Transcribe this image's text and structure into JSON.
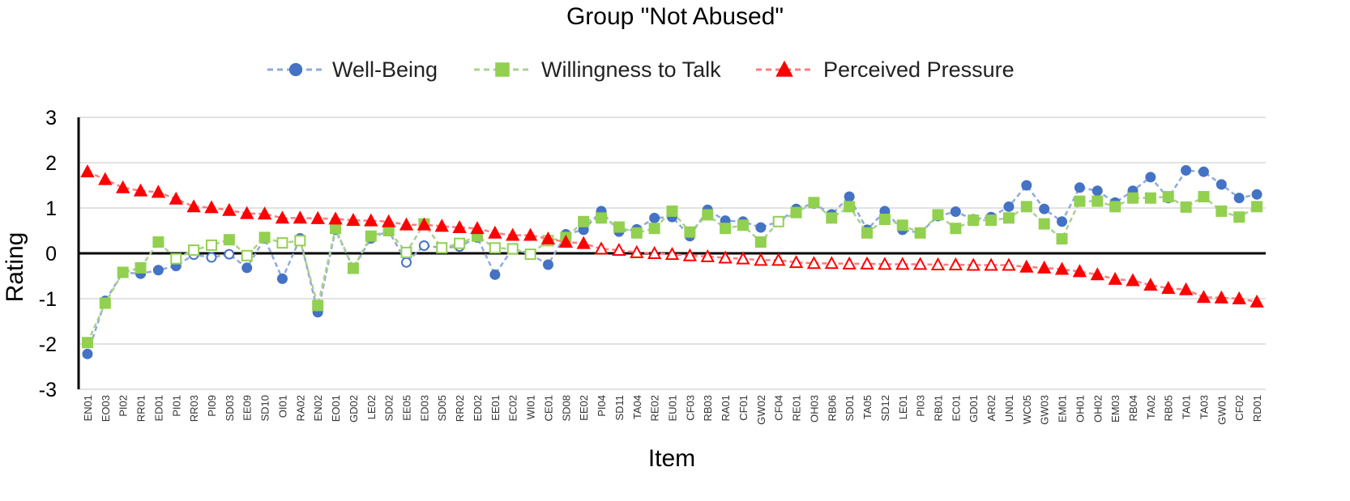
{
  "chart_data": {
    "type": "line",
    "title": "Group \"Not Abused\"",
    "xlabel": "Item",
    "ylabel": "Rating",
    "ylim": [
      -3,
      3
    ],
    "yticks": [
      -3,
      -2,
      -1,
      0,
      1,
      2,
      3
    ],
    "grid": true,
    "legend_position": "top",
    "categories": [
      "EN01",
      "EO03",
      "PI02",
      "RR01",
      "ED01",
      "PI01",
      "RR03",
      "PI09",
      "SD03",
      "EE09",
      "SD10",
      "OI01",
      "RA02",
      "EN02",
      "EO01",
      "GD02",
      "LE02",
      "SD02",
      "EE05",
      "ED03",
      "SD05",
      "RR02",
      "ED02",
      "EE01",
      "EC02",
      "WI01",
      "CE01",
      "SD08",
      "EE02",
      "PI04",
      "SD11",
      "TA04",
      "RE02",
      "EU01",
      "CF03",
      "RB03",
      "RA01",
      "CF01",
      "GW02",
      "CF04",
      "RE01",
      "OH03",
      "RB06",
      "SD01",
      "TA05",
      "SD12",
      "LE01",
      "PI03",
      "RB01",
      "EC01",
      "GD01",
      "AR02",
      "UN01",
      "WC05",
      "GW03",
      "EM01",
      "OH01",
      "OH02",
      "EM03",
      "RB04",
      "TA02",
      "RB05",
      "TA01",
      "TA03",
      "GW01",
      "CF02",
      "RD01"
    ],
    "series": [
      {
        "name": "Well-Being",
        "color": "#4472C4",
        "marker": "circle",
        "values": [
          -2.22,
          -1.05,
          -0.42,
          -0.45,
          -0.37,
          -0.28,
          -0.03,
          -0.09,
          -0.02,
          -0.32,
          0.33,
          -0.56,
          0.33,
          -1.3,
          0.52,
          -0.33,
          0.33,
          0.5,
          -0.2,
          0.17,
          0.12,
          0.15,
          0.35,
          -0.47,
          0.11,
          -0.02,
          -0.25,
          0.42,
          0.52,
          0.93,
          0.48,
          0.53,
          0.78,
          0.8,
          0.38,
          0.96,
          0.72,
          0.7,
          0.57,
          0.7,
          0.98,
          1.1,
          0.86,
          1.25,
          0.52,
          0.93,
          0.52,
          0.45,
          0.82,
          0.92,
          0.75,
          0.8,
          1.03,
          1.5,
          0.98,
          0.7,
          1.45,
          1.38,
          1.12,
          1.38,
          1.68,
          1.22,
          1.83,
          1.8,
          1.52,
          1.22,
          1.3
        ],
        "filled": [
          true,
          true,
          true,
          true,
          true,
          true,
          false,
          false,
          false,
          true,
          true,
          true,
          true,
          true,
          true,
          true,
          true,
          true,
          false,
          false,
          false,
          false,
          true,
          true,
          false,
          false,
          true,
          true,
          true,
          true,
          true,
          true,
          true,
          true,
          true,
          true,
          true,
          true,
          true,
          true,
          true,
          true,
          true,
          true,
          true,
          true,
          true,
          true,
          true,
          true,
          true,
          true,
          true,
          true,
          true,
          true,
          true,
          true,
          true,
          true,
          true,
          true,
          true,
          true,
          true,
          true,
          true
        ]
      },
      {
        "name": "Willingness to Talk",
        "color": "#92D050",
        "marker": "square",
        "values": [
          -1.97,
          -1.1,
          -0.42,
          -0.32,
          0.25,
          -0.12,
          0.07,
          0.18,
          0.3,
          -0.05,
          0.35,
          0.23,
          0.28,
          -1.15,
          0.55,
          -0.33,
          0.38,
          0.5,
          0.02,
          0.65,
          0.12,
          0.22,
          0.38,
          0.12,
          0.1,
          -0.02,
          0.28,
          0.35,
          0.7,
          0.78,
          0.58,
          0.45,
          0.55,
          0.93,
          0.47,
          0.85,
          0.55,
          0.62,
          0.25,
          0.7,
          0.9,
          1.12,
          0.78,
          1.03,
          0.45,
          0.75,
          0.62,
          0.45,
          0.85,
          0.55,
          0.73,
          0.73,
          0.78,
          1.03,
          0.65,
          0.32,
          1.15,
          1.15,
          1.03,
          1.22,
          1.22,
          1.25,
          1.02,
          1.25,
          0.93,
          0.8,
          1.03
        ],
        "filled": [
          true,
          true,
          true,
          true,
          true,
          false,
          false,
          false,
          true,
          false,
          true,
          false,
          false,
          true,
          true,
          true,
          true,
          true,
          false,
          true,
          false,
          false,
          true,
          false,
          false,
          false,
          false,
          true,
          true,
          true,
          true,
          true,
          true,
          true,
          true,
          true,
          true,
          true,
          true,
          false,
          true,
          true,
          true,
          true,
          true,
          true,
          true,
          true,
          true,
          true,
          true,
          true,
          true,
          true,
          true,
          true,
          true,
          true,
          true,
          true,
          true,
          true,
          true,
          true,
          true,
          true,
          true
        ]
      },
      {
        "name": "Perceived Pressure",
        "color": "#FF0000",
        "marker": "triangle",
        "values": [
          1.8,
          1.63,
          1.45,
          1.38,
          1.35,
          1.2,
          1.03,
          1.01,
          0.95,
          0.88,
          0.87,
          0.78,
          0.78,
          0.77,
          0.76,
          0.73,
          0.72,
          0.7,
          0.63,
          0.63,
          0.6,
          0.57,
          0.55,
          0.45,
          0.4,
          0.4,
          0.32,
          0.25,
          0.22,
          0.1,
          0.07,
          0.02,
          0.0,
          -0.02,
          -0.05,
          -0.07,
          -0.1,
          -0.12,
          -0.15,
          -0.15,
          -0.2,
          -0.22,
          -0.22,
          -0.23,
          -0.23,
          -0.24,
          -0.24,
          -0.24,
          -0.25,
          -0.25,
          -0.26,
          -0.26,
          -0.26,
          -0.3,
          -0.32,
          -0.35,
          -0.4,
          -0.47,
          -0.57,
          -0.6,
          -0.7,
          -0.77,
          -0.8,
          -0.97,
          -0.98,
          -1.0,
          -1.07
        ],
        "filled": [
          true,
          true,
          true,
          true,
          true,
          true,
          true,
          true,
          true,
          true,
          true,
          true,
          true,
          true,
          true,
          true,
          true,
          true,
          true,
          true,
          true,
          true,
          true,
          true,
          true,
          true,
          true,
          true,
          true,
          false,
          false,
          false,
          false,
          false,
          false,
          false,
          false,
          false,
          false,
          false,
          false,
          false,
          false,
          false,
          false,
          false,
          false,
          false,
          false,
          false,
          false,
          false,
          false,
          true,
          true,
          true,
          true,
          true,
          true,
          true,
          true,
          true,
          true,
          true,
          true,
          true,
          true
        ]
      }
    ]
  }
}
